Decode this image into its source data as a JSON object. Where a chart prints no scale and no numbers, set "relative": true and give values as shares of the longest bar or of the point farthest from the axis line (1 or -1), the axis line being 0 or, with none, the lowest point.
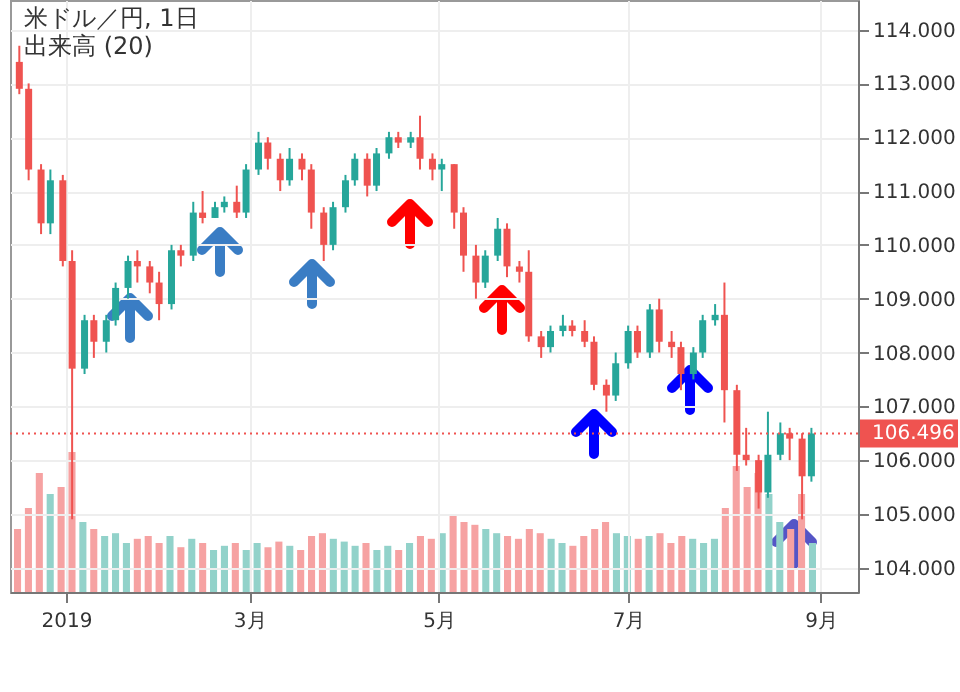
{
  "chart_data": [
    {
      "type": "candlestick",
      "title": "米ドル／円, 1日",
      "subtitle": "出来高 (20)",
      "x": [
        "2018-12-17",
        "2018-12-20",
        "2018-12-24",
        "2018-12-27",
        "2018-12-31",
        "2019-01-03",
        "2019-01-07",
        "2019-01-10",
        "2019-01-14",
        "2019-01-17",
        "2019-01-21",
        "2019-01-24",
        "2019-01-28",
        "2019-01-31",
        "2019-02-04",
        "2019-02-07",
        "2019-02-11",
        "2019-02-14",
        "2019-02-18",
        "2019-02-21",
        "2019-02-25",
        "2019-02-28",
        "2019-03-04",
        "2019-03-07",
        "2019-03-11",
        "2019-03-14",
        "2019-03-18",
        "2019-03-21",
        "2019-03-25",
        "2019-03-28",
        "2019-04-01",
        "2019-04-04",
        "2019-04-08",
        "2019-04-11",
        "2019-04-15",
        "2019-04-18",
        "2019-04-22",
        "2019-04-25",
        "2019-04-29",
        "2019-05-02",
        "2019-05-06",
        "2019-05-09",
        "2019-05-13",
        "2019-05-16",
        "2019-05-20",
        "2019-05-23",
        "2019-05-27",
        "2019-05-30",
        "2019-06-03",
        "2019-06-06",
        "2019-06-10",
        "2019-06-13",
        "2019-06-17",
        "2019-06-20",
        "2019-06-24",
        "2019-06-27",
        "2019-07-01",
        "2019-07-04",
        "2019-07-08",
        "2019-07-11",
        "2019-07-15",
        "2019-07-18",
        "2019-07-22",
        "2019-07-25",
        "2019-07-29",
        "2019-08-01",
        "2019-08-05",
        "2019-08-08",
        "2019-08-12",
        "2019-08-15",
        "2019-08-19",
        "2019-08-22",
        "2019-08-26",
        "2019-08-29"
      ],
      "ohlc": [
        [
          113.4,
          113.7,
          112.8,
          112.9
        ],
        [
          112.9,
          113.0,
          111.2,
          111.4
        ],
        [
          111.4,
          111.5,
          110.2,
          110.4
        ],
        [
          110.4,
          111.4,
          110.2,
          111.2
        ],
        [
          111.2,
          111.3,
          109.6,
          109.7
        ],
        [
          109.7,
          109.9,
          104.9,
          107.7
        ],
        [
          107.7,
          108.7,
          107.6,
          108.6
        ],
        [
          108.6,
          108.7,
          107.9,
          108.2
        ],
        [
          108.2,
          108.7,
          108.0,
          108.6
        ],
        [
          108.6,
          109.3,
          108.5,
          109.2
        ],
        [
          109.2,
          109.8,
          109.0,
          109.7
        ],
        [
          109.7,
          109.9,
          109.3,
          109.6
        ],
        [
          109.6,
          109.7,
          109.1,
          109.3
        ],
        [
          109.3,
          109.5,
          108.6,
          108.9
        ],
        [
          108.9,
          110.0,
          108.8,
          109.9
        ],
        [
          109.9,
          110.0,
          109.6,
          109.8
        ],
        [
          109.8,
          110.8,
          109.7,
          110.6
        ],
        [
          110.6,
          111.0,
          110.4,
          110.5
        ],
        [
          110.5,
          110.8,
          110.5,
          110.7
        ],
        [
          110.7,
          110.9,
          110.6,
          110.8
        ],
        [
          110.8,
          111.1,
          110.5,
          110.6
        ],
        [
          110.6,
          111.5,
          110.5,
          111.4
        ],
        [
          111.4,
          112.1,
          111.3,
          111.9
        ],
        [
          111.9,
          112.0,
          111.4,
          111.6
        ],
        [
          111.6,
          111.7,
          111.0,
          111.2
        ],
        [
          111.2,
          111.8,
          111.1,
          111.6
        ],
        [
          111.6,
          111.7,
          111.2,
          111.4
        ],
        [
          111.4,
          111.5,
          110.3,
          110.6
        ],
        [
          110.6,
          110.7,
          109.7,
          110.0
        ],
        [
          110.0,
          110.8,
          109.9,
          110.7
        ],
        [
          110.7,
          111.3,
          110.6,
          111.2
        ],
        [
          111.2,
          111.7,
          111.1,
          111.6
        ],
        [
          111.6,
          111.7,
          110.9,
          111.1
        ],
        [
          111.1,
          111.8,
          111.0,
          111.7
        ],
        [
          111.7,
          112.1,
          111.6,
          112.0
        ],
        [
          112.0,
          112.1,
          111.8,
          111.9
        ],
        [
          111.9,
          112.1,
          111.8,
          112.0
        ],
        [
          112.0,
          112.4,
          111.4,
          111.6
        ],
        [
          111.6,
          111.7,
          111.2,
          111.4
        ],
        [
          111.4,
          111.6,
          111.0,
          111.5
        ],
        [
          111.5,
          111.5,
          110.3,
          110.6
        ],
        [
          110.6,
          110.7,
          109.5,
          109.8
        ],
        [
          109.8,
          110.0,
          109.0,
          109.3
        ],
        [
          109.3,
          109.9,
          109.2,
          109.8
        ],
        [
          109.8,
          110.5,
          109.7,
          110.3
        ],
        [
          110.3,
          110.4,
          109.4,
          109.6
        ],
        [
          109.6,
          109.7,
          109.3,
          109.5
        ],
        [
          109.5,
          109.9,
          108.2,
          108.3
        ],
        [
          108.3,
          108.4,
          107.9,
          108.1
        ],
        [
          108.1,
          108.5,
          108.0,
          108.4
        ],
        [
          108.4,
          108.7,
          108.3,
          108.5
        ],
        [
          108.5,
          108.6,
          108.3,
          108.4
        ],
        [
          108.4,
          108.6,
          108.1,
          108.2
        ],
        [
          108.2,
          108.3,
          107.3,
          107.4
        ],
        [
          107.4,
          107.5,
          106.9,
          107.2
        ],
        [
          107.2,
          108.0,
          107.1,
          107.8
        ],
        [
          107.8,
          108.5,
          107.7,
          108.4
        ],
        [
          108.4,
          108.5,
          107.9,
          108.0
        ],
        [
          108.0,
          108.9,
          107.9,
          108.8
        ],
        [
          108.8,
          109.0,
          108.0,
          108.2
        ],
        [
          108.2,
          108.4,
          107.9,
          108.1
        ],
        [
          108.1,
          108.2,
          107.3,
          107.6
        ],
        [
          107.6,
          108.1,
          107.5,
          108.0
        ],
        [
          108.0,
          108.7,
          107.9,
          108.6
        ],
        [
          108.6,
          108.9,
          108.5,
          108.7
        ],
        [
          108.7,
          109.3,
          106.7,
          107.3
        ],
        [
          107.3,
          107.4,
          105.8,
          106.1
        ],
        [
          106.1,
          106.6,
          105.9,
          106.0
        ],
        [
          106.0,
          106.1,
          105.1,
          105.4
        ],
        [
          105.4,
          106.9,
          105.3,
          106.1
        ],
        [
          106.1,
          106.7,
          106.0,
          106.5
        ],
        [
          106.5,
          106.6,
          106.0,
          106.4
        ],
        [
          106.4,
          106.5,
          104.9,
          105.7
        ],
        [
          105.7,
          106.6,
          105.6,
          106.496
        ]
      ],
      "colors": [
        "#ef5350",
        "#ef5350",
        "#ef5350",
        "#26a69a",
        "#ef5350",
        "#ef5350",
        "#26a69a",
        "#ef5350",
        "#26a69a",
        "#26a69a",
        "#26a69a",
        "#ef5350",
        "#ef5350",
        "#ef5350",
        "#26a69a",
        "#ef5350",
        "#26a69a",
        "#ef5350",
        "#26a69a",
        "#26a69a",
        "#ef5350",
        "#26a69a",
        "#26a69a",
        "#ef5350",
        "#ef5350",
        "#26a69a",
        "#ef5350",
        "#ef5350",
        "#ef5350",
        "#26a69a",
        "#26a69a",
        "#26a69a",
        "#ef5350",
        "#26a69a",
        "#26a69a",
        "#ef5350",
        "#26a69a",
        "#ef5350",
        "#ef5350",
        "#26a69a",
        "#ef5350",
        "#ef5350",
        "#ef5350",
        "#26a69a",
        "#26a69a",
        "#ef5350",
        "#ef5350",
        "#ef5350",
        "#ef5350",
        "#26a69a",
        "#26a69a",
        "#ef5350",
        "#ef5350",
        "#ef5350",
        "#ef5350",
        "#26a69a",
        "#26a69a",
        "#ef5350",
        "#26a69a",
        "#ef5350",
        "#ef5350",
        "#ef5350",
        "#26a69a",
        "#26a69a",
        "#26a69a",
        "#ef5350",
        "#ef5350",
        "#ef5350",
        "#ef5350",
        "#26a69a",
        "#26a69a",
        "#ef5350",
        "#ef5350",
        "#26a69a"
      ],
      "xlim": [
        "2018-12-14",
        "2019-09-13"
      ],
      "xticks": [
        {
          "value": "2019-01-01",
          "label": "2019"
        },
        {
          "value": "2019-03-01",
          "label": "3月"
        },
        {
          "value": "2019-05-01",
          "label": "5月"
        },
        {
          "value": "2019-07-01",
          "label": "7月"
        },
        {
          "value": "2019-09-01",
          "label": "9月"
        }
      ],
      "ylim": [
        103.55,
        114.55
      ],
      "yticks": [
        {
          "value": 104,
          "label": "104.000"
        },
        {
          "value": 105,
          "label": "105.000"
        },
        {
          "value": 106,
          "label": "106.000"
        },
        {
          "value": 107,
          "label": "107.000"
        },
        {
          "value": 108,
          "label": "108.000"
        },
        {
          "value": 109,
          "label": "109.000"
        },
        {
          "value": 110,
          "label": "110.000"
        },
        {
          "value": 111,
          "label": "111.000"
        },
        {
          "value": 112,
          "label": "112.000"
        },
        {
          "value": 113,
          "label": "113.000"
        },
        {
          "value": 114,
          "label": "114.000"
        }
      ],
      "grid": true,
      "ref_lines": [
        {
          "axis": "y",
          "value": 106.496,
          "label": "106.496",
          "color": "#ef5350",
          "line_style": "dotted"
        }
      ]
    },
    {
      "type": "bar",
      "relative": true,
      "categories": [
        null,
        null,
        null,
        null,
        null,
        null,
        null,
        null,
        null,
        null,
        null,
        null,
        null,
        null,
        null,
        null,
        null,
        null,
        null,
        null,
        null,
        null,
        null,
        null,
        null,
        null,
        null,
        null,
        null,
        null,
        null,
        null,
        null,
        null,
        null,
        null,
        null,
        null,
        null,
        null,
        null,
        null,
        null,
        null,
        null,
        null,
        null,
        null,
        null,
        null,
        null,
        null,
        null,
        null,
        null,
        null,
        null,
        null,
        null,
        null,
        null,
        null,
        null,
        null,
        null,
        null,
        null,
        null,
        null,
        null,
        null,
        null,
        null,
        null
      ],
      "values": [
        0.45,
        0.6,
        0.85,
        0.7,
        0.75,
        1.0,
        0.5,
        0.45,
        0.4,
        0.42,
        0.35,
        0.38,
        0.4,
        0.35,
        0.4,
        0.32,
        0.38,
        0.35,
        0.3,
        0.33,
        0.35,
        0.3,
        0.35,
        0.32,
        0.36,
        0.33,
        0.3,
        0.4,
        0.42,
        0.38,
        0.36,
        0.33,
        0.35,
        0.3,
        0.33,
        0.3,
        0.35,
        0.4,
        0.38,
        0.42,
        0.55,
        0.5,
        0.48,
        0.45,
        0.42,
        0.4,
        0.38,
        0.45,
        0.42,
        0.38,
        0.35,
        0.33,
        0.4,
        0.45,
        0.5,
        0.42,
        0.4,
        0.38,
        0.4,
        0.42,
        0.35,
        0.4,
        0.38,
        0.35,
        0.38,
        0.6,
        0.9,
        0.75,
        0.85,
        0.7,
        0.5,
        0.45,
        0.7,
        0.35
      ],
      "colors": [
        "#f6a2a2",
        "#f6a2a2",
        "#f6a2a2",
        "#92d2ca",
        "#f6a2a2",
        "#f6a2a2",
        "#92d2ca",
        "#f6a2a2",
        "#92d2ca",
        "#92d2ca",
        "#92d2ca",
        "#f6a2a2",
        "#f6a2a2",
        "#f6a2a2",
        "#92d2ca",
        "#f6a2a2",
        "#92d2ca",
        "#f6a2a2",
        "#92d2ca",
        "#92d2ca",
        "#f6a2a2",
        "#92d2ca",
        "#92d2ca",
        "#f6a2a2",
        "#f6a2a2",
        "#92d2ca",
        "#f6a2a2",
        "#f6a2a2",
        "#f6a2a2",
        "#92d2ca",
        "#92d2ca",
        "#92d2ca",
        "#f6a2a2",
        "#92d2ca",
        "#92d2ca",
        "#f6a2a2",
        "#92d2ca",
        "#f6a2a2",
        "#f6a2a2",
        "#92d2ca",
        "#f6a2a2",
        "#f6a2a2",
        "#f6a2a2",
        "#92d2ca",
        "#92d2ca",
        "#f6a2a2",
        "#f6a2a2",
        "#f6a2a2",
        "#f6a2a2",
        "#92d2ca",
        "#92d2ca",
        "#f6a2a2",
        "#f6a2a2",
        "#f6a2a2",
        "#f6a2a2",
        "#92d2ca",
        "#92d2ca",
        "#f6a2a2",
        "#92d2ca",
        "#f6a2a2",
        "#f6a2a2",
        "#f6a2a2",
        "#92d2ca",
        "#92d2ca",
        "#92d2ca",
        "#f6a2a2",
        "#f6a2a2",
        "#f6a2a2",
        "#f6a2a2",
        "#92d2ca",
        "#92d2ca",
        "#f6a2a2",
        "#f6a2a2",
        "#92d2ca"
      ]
    }
  ]
}
